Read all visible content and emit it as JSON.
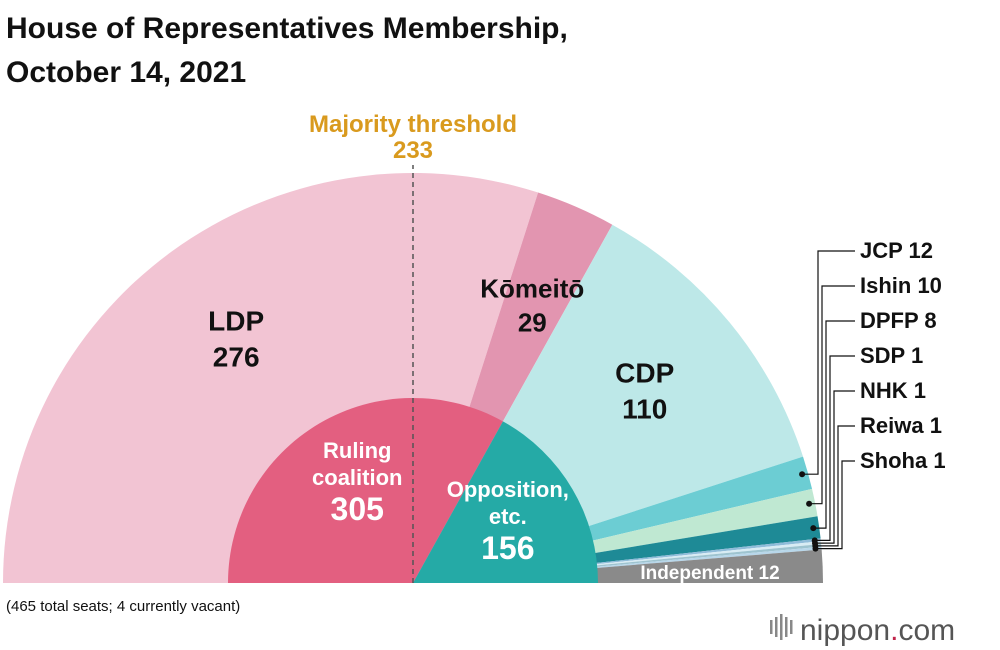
{
  "chart_data": {
    "type": "pie",
    "subtype": "semicircle-parliament",
    "title_lines": [
      "House of Representatives Membership,",
      "October 14, 2021"
    ],
    "total_label": "(465 total seats; 4 currently vacant)",
    "majority": {
      "label": "Majority threshold",
      "value": 233
    },
    "colors": {
      "LDP": "#f2c4d3",
      "Komeito": "#e295b0",
      "CDP": "#bde8e8",
      "JCP": "#6ccdd3",
      "Ishin": "#bfe8d2",
      "DPFP": "#1e8a96",
      "SDP": "#8fbcd9",
      "NHK": "#d8ecf4",
      "Reiwa": "#9ec4d0",
      "Shoha": "#b8d7ea",
      "Independent": "#8a8a8a",
      "ruling": "#e35f80",
      "opposition": "#25aaa6",
      "threshold": "#d99a1e"
    },
    "parties": [
      {
        "key": "LDP",
        "name": "LDP",
        "value": 276
      },
      {
        "key": "Komeito",
        "name": "Kōmeitō",
        "value": 29
      },
      {
        "key": "CDP",
        "name": "CDP",
        "value": 110
      },
      {
        "key": "JCP",
        "name": "JCP",
        "value": 12
      },
      {
        "key": "Ishin",
        "name": "Ishin",
        "value": 10
      },
      {
        "key": "DPFP",
        "name": "DPFP",
        "value": 8
      },
      {
        "key": "SDP",
        "name": "SDP",
        "value": 1
      },
      {
        "key": "NHK",
        "name": "NHK",
        "value": 1
      },
      {
        "key": "Reiwa",
        "name": "Reiwa",
        "value": 1
      },
      {
        "key": "Shoha",
        "name": "Shoha",
        "value": 1
      },
      {
        "key": "Independent",
        "name": "Independent",
        "value": 12
      }
    ],
    "blocs": [
      {
        "key": "ruling",
        "name_lines": [
          "Ruling",
          "coalition"
        ],
        "value": 305
      },
      {
        "key": "opposition",
        "name_lines": [
          "Opposition,",
          "etc."
        ],
        "value": 156
      }
    ]
  },
  "brand": {
    "name": "nippon",
    "dot": ".",
    "tld": "com"
  }
}
